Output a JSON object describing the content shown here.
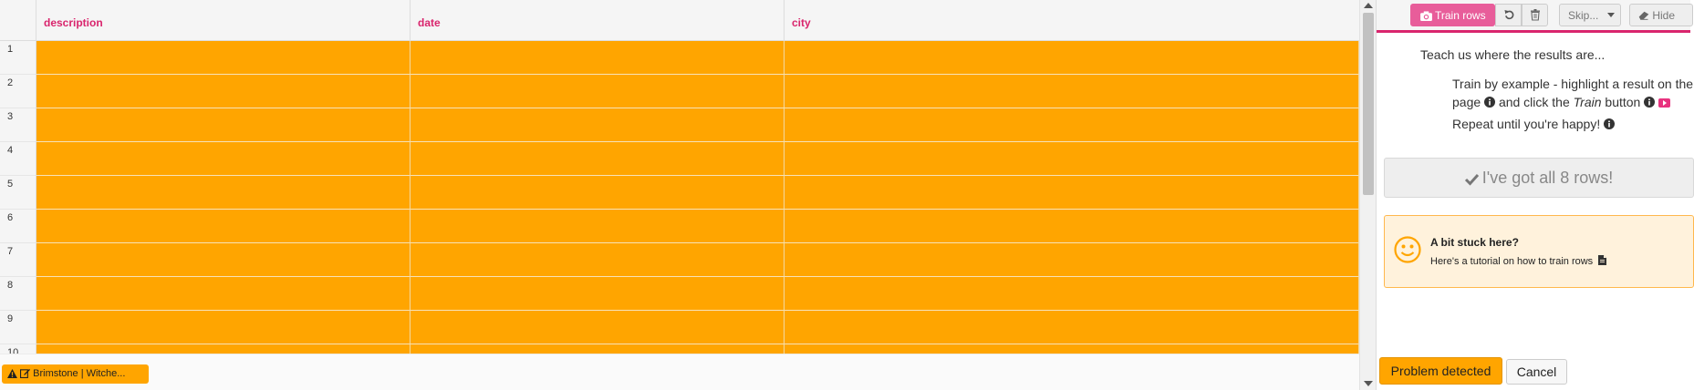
{
  "grid": {
    "columns": [
      "description",
      "date",
      "city"
    ],
    "row_numbers": [
      "1",
      "2",
      "3",
      "4",
      "5",
      "6",
      "7",
      "8",
      "9",
      "10"
    ],
    "highlight_color": "#ffa500",
    "header_color": "#d9256d"
  },
  "status_bar": {
    "warning_tab_label": "Brimstone | Witche..."
  },
  "toolbar": {
    "train_rows_label": "Train rows",
    "skip_label": "Skip...",
    "hide_label": "Hide"
  },
  "instructions": {
    "teach": "Teach us where the results are...",
    "train_by_example_line1": "Train by example - highlight a result on the",
    "train_by_example_line2_a": "page",
    "train_by_example_line2_b": "and click the",
    "train_word": "Train",
    "button_word": "button",
    "repeat": "Repeat until you're happy!"
  },
  "got_all_button": {
    "label": "I've got all 8 rows!"
  },
  "stuck_box": {
    "title": "A bit stuck here?",
    "link_text": "Here's a tutorial on how to train rows"
  },
  "footer": {
    "problem_label": "Problem detected",
    "cancel_label": "Cancel"
  },
  "icons": {
    "train": "camera-icon",
    "undo": "undo-icon",
    "delete": "trash-icon",
    "hide": "eraser-icon",
    "info": "info-circle-icon",
    "video": "youtube-icon",
    "check": "check-icon",
    "smiley": "smiley-icon",
    "document": "file-icon",
    "warning": "warning-icon",
    "edit": "edit-icon"
  },
  "colors": {
    "accent_pink": "#d9256d",
    "train_button": "#e85d9a",
    "orange": "#ffa500",
    "stuck_bg": "#fff2dc"
  }
}
